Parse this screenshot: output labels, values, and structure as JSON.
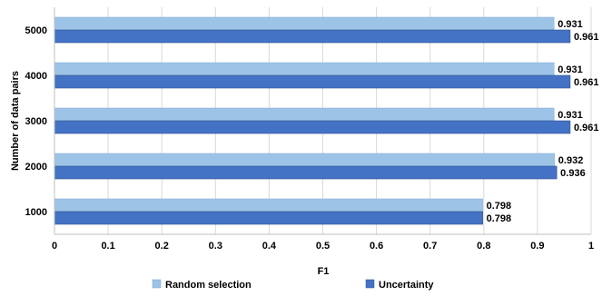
{
  "chart_data": {
    "type": "bar",
    "orientation": "horizontal",
    "categories": [
      "5000",
      "4000",
      "3000",
      "2000",
      "1000"
    ],
    "series": [
      {
        "name": "Random selection",
        "values": [
          0.931,
          0.931,
          0.931,
          0.932,
          0.798
        ],
        "color": "#9dc3e6"
      },
      {
        "name": "Uncertainty",
        "values": [
          0.961,
          0.961,
          0.961,
          0.936,
          0.798
        ],
        "color": "#4472c4"
      }
    ],
    "title": "",
    "xlabel": "F1",
    "ylabel": "Number of data pairs",
    "xlim": [
      0,
      1
    ],
    "xticks": [
      0,
      0.1,
      0.2,
      0.3,
      0.4,
      0.5,
      0.6,
      0.7,
      0.8,
      0.9,
      1
    ],
    "xtick_labels": [
      "0",
      "0.1",
      "0.2",
      "0.3",
      "0.4",
      "0.5",
      "0.6",
      "0.7",
      "0.8",
      "0.9",
      "1"
    ],
    "data_labels": [
      [
        "0.931",
        "0.931",
        "0.931",
        "0.932",
        "0.798"
      ],
      [
        "0.961",
        "0.961",
        "0.961",
        "0.936",
        "0.798"
      ]
    ],
    "grid": true,
    "legend_position": "bottom"
  }
}
